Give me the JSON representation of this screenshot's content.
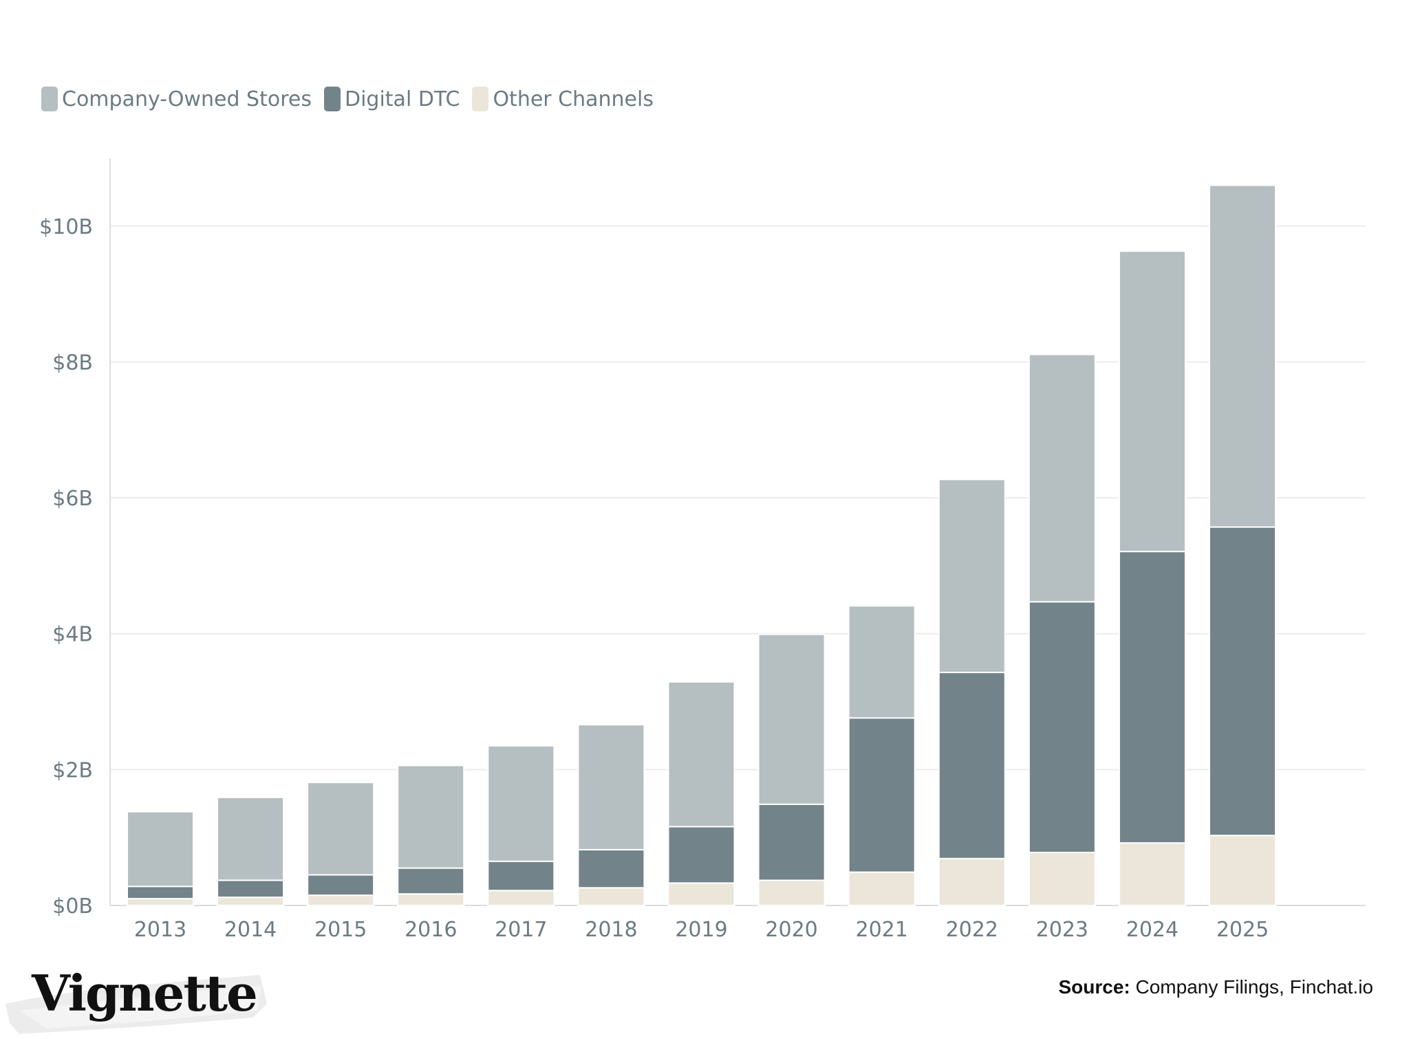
{
  "legend": {
    "items": [
      {
        "label": "Company-Owned Stores",
        "color": "#b5bec1"
      },
      {
        "label": "Digital DTC",
        "color": "#728389"
      },
      {
        "label": "Other Channels",
        "color": "#ebe6d9"
      }
    ]
  },
  "source": {
    "prefix": "Source:",
    "text": " Company Filings, Finchat.io"
  },
  "logo": {
    "text": "Vignette"
  },
  "chart_data": {
    "type": "bar",
    "stacked": true,
    "title": "",
    "xlabel": "",
    "ylabel": "",
    "ylim": [
      0,
      11
    ],
    "yticks": [
      0,
      2,
      4,
      6,
      8,
      10
    ],
    "ytick_labels": [
      "$0B",
      "$2B",
      "$4B",
      "$6B",
      "$8B",
      "$10B"
    ],
    "categories": [
      "2013",
      "2014",
      "2015",
      "2016",
      "2017",
      "2018",
      "2019",
      "2020",
      "2021",
      "2022",
      "2023",
      "2024",
      "2025"
    ],
    "series": [
      {
        "name": "Other Channels",
        "color": "#ebe6d9",
        "values": [
          0.1,
          0.12,
          0.15,
          0.17,
          0.22,
          0.26,
          0.33,
          0.37,
          0.49,
          0.69,
          0.78,
          0.92,
          1.03
        ]
      },
      {
        "name": "Digital DTC",
        "color": "#728389",
        "values": [
          0.18,
          0.25,
          0.3,
          0.38,
          0.43,
          0.56,
          0.83,
          1.12,
          2.27,
          2.74,
          3.69,
          4.29,
          4.54
        ]
      },
      {
        "name": "Company-Owned Stores",
        "color": "#b5bec1",
        "values": [
          1.1,
          1.22,
          1.36,
          1.51,
          1.7,
          1.84,
          2.13,
          2.5,
          1.65,
          2.84,
          3.64,
          4.42,
          5.03
        ]
      }
    ],
    "grid": true,
    "legend_position": "top-left"
  }
}
